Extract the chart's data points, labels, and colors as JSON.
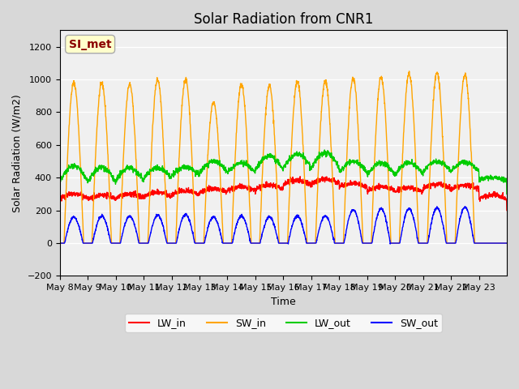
{
  "title": "Solar Radiation from CNR1",
  "xlabel": "Time",
  "ylabel": "Solar Radiation (W/m2)",
  "ylim": [
    -200,
    1300
  ],
  "yticks": [
    -200,
    0,
    200,
    400,
    600,
    800,
    1000,
    1200
  ],
  "date_labels": [
    "May 8",
    "May 9",
    "May 10",
    "May 11",
    "May 12",
    "May 13",
    "May 14",
    "May 15",
    "May 16",
    "May 17",
    "May 18",
    "May 19",
    "May 20",
    "May 21",
    "May 22",
    "May 23"
  ],
  "n_days": 16,
  "colors": {
    "LW_in": "#ff0000",
    "SW_in": "#ffa500",
    "LW_out": "#00cc00",
    "SW_out": "#0000ff"
  },
  "fig_bg_color": "#d8d8d8",
  "plot_bg_color": "#f0f0f0",
  "annotation_text": "SI_met",
  "annotation_color": "#8b0000",
  "annotation_bg": "#ffffcc",
  "legend_labels": [
    "LW_in",
    "SW_in",
    "LW_out",
    "SW_out"
  ]
}
